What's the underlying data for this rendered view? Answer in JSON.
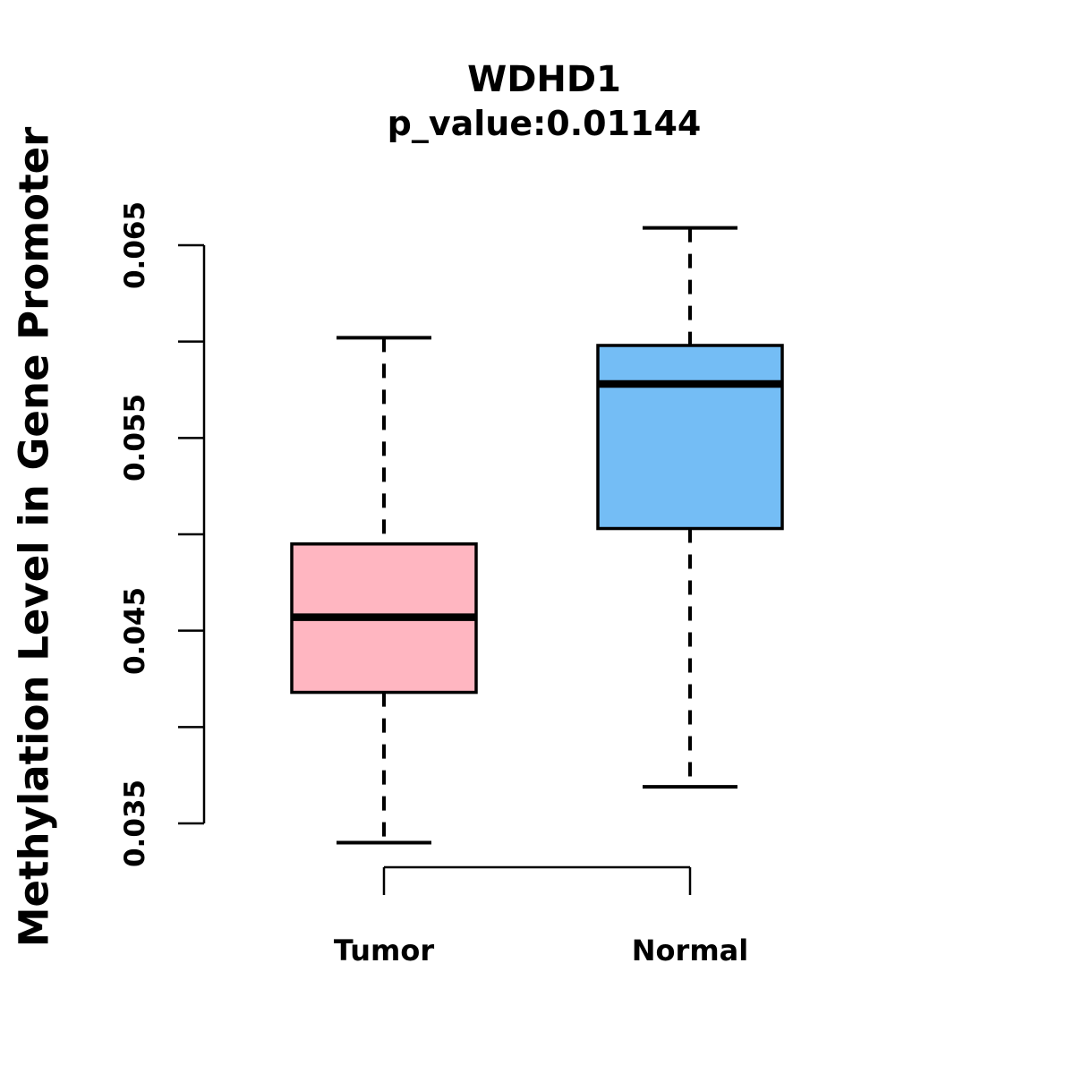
{
  "header": {
    "title": "WDHD1",
    "subtitle": "p_value:0.01144"
  },
  "chart_data": {
    "type": "boxplot",
    "title": "WDHD1",
    "subtitle": "p_value:0.01144",
    "xlabel": "",
    "ylabel": "Methylation Level in Gene Promoter",
    "ylim": [
      0.035,
      0.065
    ],
    "yticks": [
      0.035,
      0.04,
      0.045,
      0.05,
      0.055,
      0.06,
      0.065
    ],
    "ytick_labels_shown": [
      "0.035",
      "0.045",
      "0.055",
      "0.065"
    ],
    "grid": false,
    "legend": null,
    "categories": [
      "Tumor",
      "Normal"
    ],
    "series": [
      {
        "name": "Tumor",
        "box_color": "#FFB6C1",
        "whisker_low": 0.034,
        "q1": 0.0418,
        "median": 0.0457,
        "q3": 0.0495,
        "whisker_high": 0.0602
      },
      {
        "name": "Normal",
        "box_color": "#74BDF5",
        "whisker_low": 0.0369,
        "q1": 0.0503,
        "median": 0.0578,
        "q3": 0.0598,
        "whisker_high": 0.0659
      }
    ]
  },
  "colors": {
    "tumor_box": "#FFB6C1",
    "normal_box": "#74BDF5",
    "stroke": "#000000",
    "background": "#FFFFFF"
  }
}
